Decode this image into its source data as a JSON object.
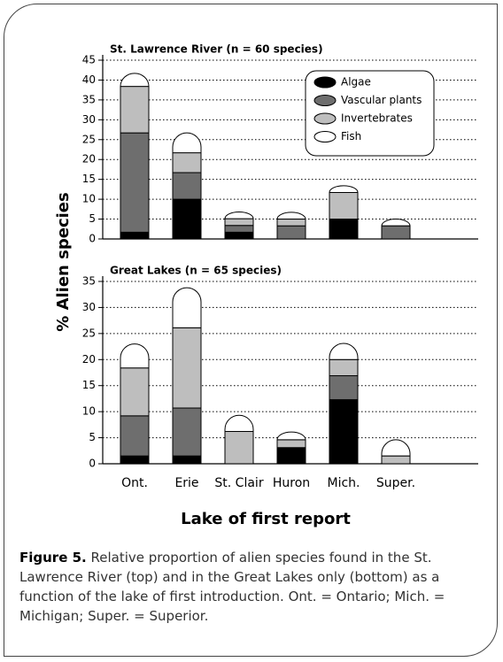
{
  "ylabel": "% Alien species",
  "xlabel": "Lake of first report",
  "caption": {
    "label": "Figure 5.",
    "text": "Relative proportion of alien species found in the St. Lawrence River (top) and in the Great Lakes only (bottom) as a function of the lake of first introduction. Ont. = Ontario; Mich. = Michigan; Super. = Superior."
  },
  "chart_data": [
    {
      "type": "stacked_bar",
      "title": "St. Lawrence River (n = 60 species)",
      "ylim": [
        0,
        45
      ],
      "yticks": [
        0,
        5,
        10,
        15,
        20,
        25,
        30,
        35,
        40,
        45
      ],
      "grid": true,
      "legend": "top-right",
      "series": [
        {
          "name": "Algae",
          "color": "#000000",
          "values": [
            1.7,
            10,
            1.7,
            0,
            5,
            0
          ]
        },
        {
          "name": "Vascular plants",
          "color": "#6e6e6e",
          "values": [
            25,
            6.7,
            1.7,
            3.3,
            0,
            3.3
          ]
        },
        {
          "name": "Invertebrates",
          "color": "#bebebe",
          "values": [
            11.7,
            5,
            1.7,
            1.7,
            6.7,
            0
          ]
        },
        {
          "name": "Fish",
          "color": "#ffffff",
          "values": [
            3.3,
            5,
            1.7,
            1.7,
            1.7,
            1.7
          ]
        }
      ]
    },
    {
      "type": "stacked_bar",
      "title": "Great Lakes (n = 65 species)",
      "categories": [
        "Ont.",
        "Erie",
        "St. Clair",
        "Huron",
        "Mich.",
        "Super."
      ],
      "ylim": [
        0,
        35
      ],
      "yticks": [
        0,
        5,
        10,
        15,
        20,
        25,
        30,
        35
      ],
      "grid": true,
      "series": [
        {
          "color": "#000000",
          "values": [
            1.5,
            1.5,
            0,
            3.1,
            12.3,
            0
          ]
        },
        {
          "color": "#6e6e6e",
          "values": [
            7.7,
            9.2,
            0,
            0,
            4.6,
            0
          ]
        },
        {
          "color": "#bebebe",
          "values": [
            9.2,
            15.4,
            6.2,
            1.5,
            3.1,
            1.5
          ]
        },
        {
          "color": "#ffffff",
          "values": [
            4.6,
            7.7,
            3.1,
            1.5,
            3.1,
            3.1
          ]
        }
      ]
    }
  ]
}
